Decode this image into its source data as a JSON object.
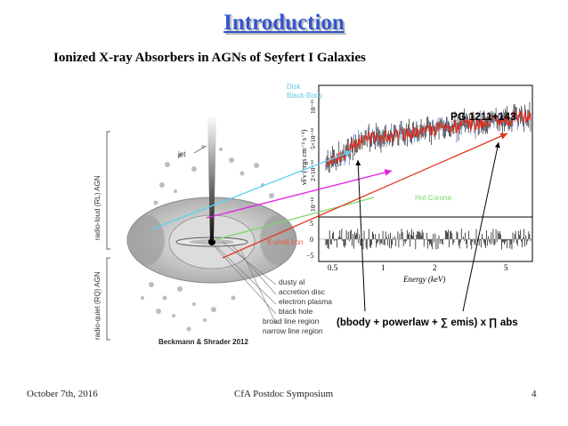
{
  "slide": {
    "title": "Introduction",
    "subtitle": "Ionized X-ray Absorbers in AGNs of Seyfert I Galaxies",
    "footer_left": "October 7th, 2016",
    "footer_center": "CfA Postdoc Symposium",
    "footer_right": "4"
  },
  "agn_diagram": {
    "jet_label": "jet",
    "rl_label": "radio-loud (RL) AGN",
    "rq_label": "radio-quiet (RQ) AGN",
    "component_labels": [
      "dusty al",
      "accretion disc",
      "electron plasma",
      "black hole",
      "broad line region",
      "narrow line region"
    ],
    "citation": "Beckmann & Shrader 2012"
  },
  "spectrum": {
    "object_label": "PG 1211+143",
    "overlay_labels": {
      "disk": "Disk",
      "blackbody": "Black-Body",
      "hot_corona": "Hot Corona",
      "kshell": "K-shell Iron"
    },
    "ylabel": "νFν (ergs cm⁻² s⁻¹)",
    "yticks": [
      "10⁻¹¹",
      "5×10⁻¹²",
      "2×10⁻¹²",
      "10⁻¹²"
    ],
    "xlabel": "Energy (keV)",
    "xticks": [
      "0.5",
      "1",
      "2",
      "5"
    ],
    "residual_ticks": [
      "5",
      "0",
      "−5"
    ]
  },
  "model_formula": "(bbody + powerlaw + ∑ emis) x ∏ abs",
  "colors": {
    "title": "#3355cc",
    "cyan_arrow": "#5ad2f0",
    "magenta_arrow": "#e020e0",
    "green_arrow": "#7ed66a",
    "red_arrow": "#e03a20",
    "torus": "#c8c8c8"
  }
}
